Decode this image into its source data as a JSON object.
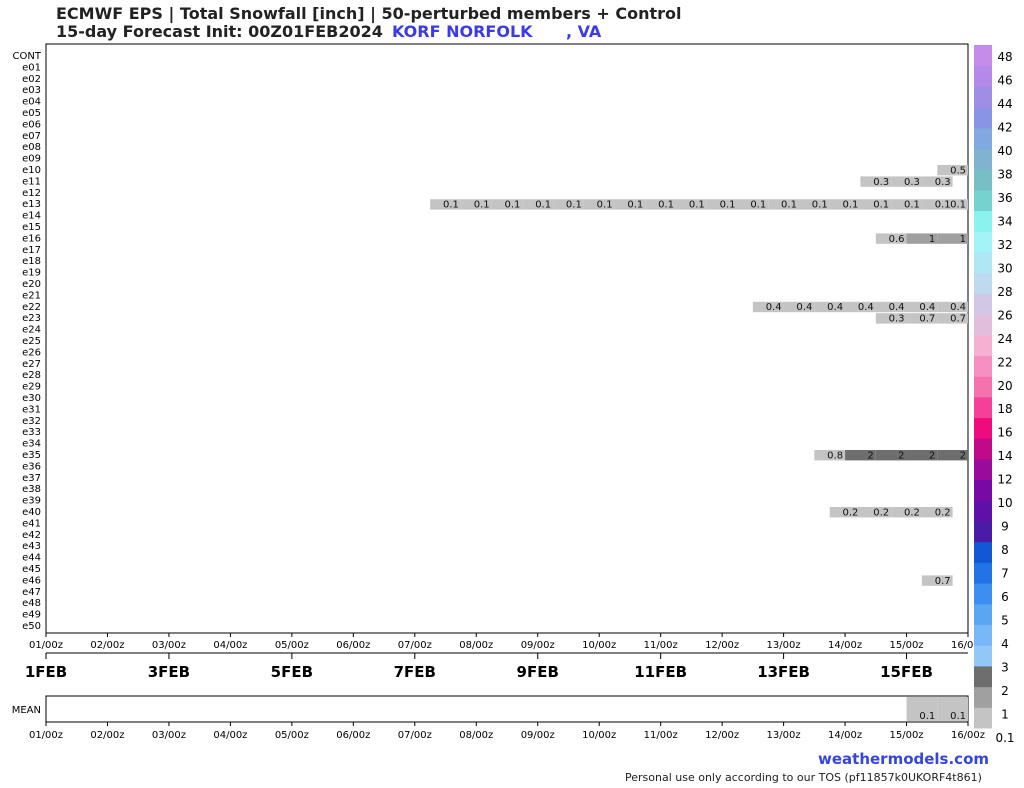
{
  "title_line1": "ECMWF EPS | Total Snowfall [inch] | 50-perturbed members + Control",
  "title_line2": "15-day Forecast Init: 00Z01FEB2024",
  "location": "KORF NORFOLK      , VA",
  "brand": "weathermodels.com",
  "tos": "Personal use only according to our TOS (pf11857k0UKORF4t861)",
  "chart_data": {
    "type": "heatmap",
    "members": [
      "CONT",
      "e01",
      "e02",
      "e03",
      "e04",
      "e05",
      "e06",
      "e07",
      "e08",
      "e09",
      "e10",
      "e11",
      "e12",
      "e13",
      "e14",
      "e15",
      "e16",
      "e17",
      "e18",
      "e19",
      "e20",
      "e21",
      "e22",
      "e23",
      "e24",
      "e25",
      "e26",
      "e27",
      "e28",
      "e29",
      "e30",
      "e31",
      "e32",
      "e33",
      "e34",
      "e35",
      "e36",
      "e37",
      "e38",
      "e39",
      "e40",
      "e41",
      "e42",
      "e43",
      "e44",
      "e45",
      "e46",
      "e47",
      "e48",
      "e49",
      "e50"
    ],
    "time_ticks": [
      "01/00z",
      "02/00z",
      "03/00z",
      "04/00z",
      "05/00z",
      "06/00z",
      "07/00z",
      "08/00z",
      "09/00z",
      "10/00z",
      "11/00z",
      "12/00z",
      "13/00z",
      "14/00z",
      "15/00z",
      "16/00z"
    ],
    "date_labels": [
      "1FEB",
      "3FEB",
      "5FEB",
      "7FEB",
      "9FEB",
      "11FEB",
      "13FEB",
      "15FEB"
    ],
    "x_range_hours": [
      0,
      360
    ],
    "rows": [
      {
        "member": "e10",
        "start_hour": 360,
        "values": [
          0.5
        ]
      },
      {
        "member": "e11",
        "start_hour": 330,
        "values": [
          0.3,
          0.3,
          0.3
        ]
      },
      {
        "member": "e13",
        "start_hour": 162,
        "values": [
          0.1,
          0.1,
          0.1,
          0.1,
          0.1,
          0.1,
          0.1,
          0.1,
          0.1,
          0.1,
          0.1,
          0.1,
          0.1,
          0.1,
          0.1,
          0.1,
          0.1,
          0.1
        ]
      },
      {
        "member": "e16",
        "start_hour": 336,
        "values": [
          0.6,
          1,
          1
        ]
      },
      {
        "member": "e22",
        "start_hour": 288,
        "values": [
          0.4,
          0.4,
          0.4,
          0.4,
          0.4,
          0.4,
          0.4
        ]
      },
      {
        "member": "e23",
        "start_hour": 336,
        "values": [
          0.3,
          0.7,
          0.7
        ]
      },
      {
        "member": "e35",
        "start_hour": 312,
        "values": [
          0.8,
          2,
          2,
          2,
          2
        ]
      },
      {
        "member": "e40",
        "start_hour": 318,
        "values": [
          0.2,
          0.2,
          0.2,
          0.2
        ]
      },
      {
        "member": "e46",
        "start_hour": 354,
        "values": [
          0.7
        ]
      }
    ],
    "mean": {
      "label": "MEAN",
      "start_hour": 348,
      "values": [
        0.1,
        0.1
      ]
    },
    "colorbar": {
      "levels": [
        0.1,
        1,
        2,
        3,
        4,
        5,
        6,
        7,
        8,
        9,
        10,
        12,
        14,
        16,
        18,
        20,
        22,
        24,
        26,
        28,
        30,
        32,
        34,
        36,
        38,
        40,
        42,
        44,
        46,
        48
      ],
      "colors": [
        "#c4c4c4",
        "#a0a0a0",
        "#6e6e6e",
        "#92c8f8",
        "#78b8f8",
        "#5aa6f2",
        "#3c8ff0",
        "#2273e6",
        "#1157d6",
        "#4a1ba6",
        "#5f10a8",
        "#770aa5",
        "#9a0a9b",
        "#c00a8a",
        "#ef0a7d",
        "#f63f96",
        "#f672af",
        "#f690c2",
        "#f6b0d2",
        "#e2bedd",
        "#d2c8e6",
        "#bfd9ef",
        "#b0e7f4",
        "#a4f3f6",
        "#8cf2ee",
        "#76d2cd",
        "#78bec5",
        "#7fb3d0",
        "#82a8e2",
        "#8a94e6",
        "#9e8ee6",
        "#b38ae9",
        "#c68ce9"
      ],
      "tick_labels": [
        "48",
        "46",
        "44",
        "42",
        "40",
        "38",
        "36",
        "34",
        "32",
        "30",
        "28",
        "26",
        "24",
        "22",
        "20",
        "18",
        "16",
        "14",
        "12",
        "10",
        "9",
        "8",
        "7",
        "6",
        "5",
        "4",
        "3",
        "2",
        "1",
        "0.1"
      ]
    }
  }
}
